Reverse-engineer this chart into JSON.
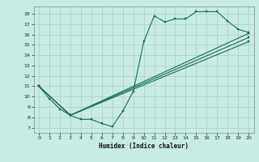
{
  "title": "",
  "xlabel": "Humidex (Indice chaleur)",
  "bg_color": "#c8ece4",
  "grid_color": "#aad4ca",
  "line_color": "#1a6b5a",
  "xlim": [
    -0.5,
    20.5
  ],
  "ylim": [
    6.5,
    18.7
  ],
  "xticks": [
    0,
    1,
    2,
    3,
    4,
    5,
    6,
    7,
    8,
    9,
    10,
    11,
    12,
    13,
    14,
    15,
    16,
    17,
    18,
    19,
    20
  ],
  "yticks": [
    7,
    8,
    9,
    10,
    11,
    12,
    13,
    14,
    15,
    16,
    17,
    18
  ],
  "curve1_x": [
    0,
    1,
    2,
    3,
    4,
    5,
    6,
    7,
    8,
    9,
    10,
    11,
    12,
    13,
    14,
    15,
    16,
    17,
    18,
    19,
    20
  ],
  "curve1_y": [
    11.0,
    9.8,
    8.8,
    8.2,
    7.8,
    7.8,
    7.4,
    7.1,
    8.6,
    10.5,
    15.3,
    17.8,
    17.2,
    17.5,
    17.5,
    18.2,
    18.2,
    18.2,
    17.3,
    16.5,
    16.2
  ],
  "curve2_x": [
    0,
    3,
    20
  ],
  "curve2_y": [
    11.0,
    8.2,
    16.1
  ],
  "curve3_x": [
    0,
    3,
    20
  ],
  "curve3_y": [
    11.0,
    8.2,
    15.7
  ],
  "curve4_x": [
    0,
    3,
    20
  ],
  "curve4_y": [
    11.0,
    8.2,
    15.3
  ]
}
